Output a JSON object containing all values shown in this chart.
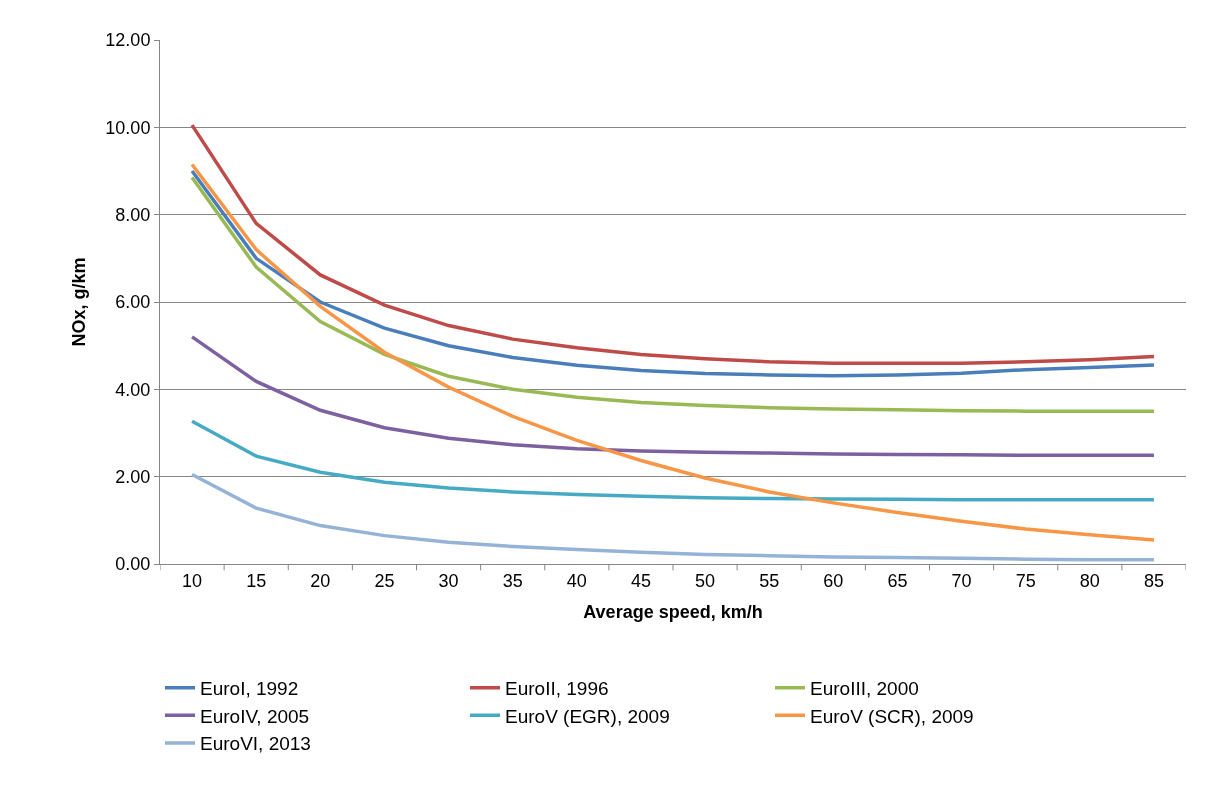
{
  "chart_data": {
    "type": "line",
    "xlabel": "Average speed, km/h",
    "ylabel": "NOx, g/km",
    "categories": [
      "10",
      "15",
      "20",
      "25",
      "30",
      "35",
      "40",
      "45",
      "50",
      "55",
      "60",
      "65",
      "70",
      "75",
      "80",
      "85"
    ],
    "series": [
      {
        "name": "EuroI, 1992",
        "color": "#4a7ebb",
        "values": [
          9.0,
          7.0,
          6.0,
          5.4,
          5.0,
          4.73,
          4.55,
          4.43,
          4.36,
          4.33,
          4.31,
          4.33,
          4.37,
          4.45,
          4.5,
          4.56
        ]
      },
      {
        "name": "EuroII, 1996",
        "color": "#be4b48",
        "values": [
          10.05,
          7.8,
          6.62,
          5.93,
          5.46,
          5.15,
          4.95,
          4.8,
          4.7,
          4.63,
          4.6,
          4.6,
          4.6,
          4.63,
          4.68,
          4.75
        ]
      },
      {
        "name": "EuroIII, 2000",
        "color": "#98b954",
        "values": [
          8.85,
          6.8,
          5.55,
          4.8,
          4.3,
          4.0,
          3.82,
          3.7,
          3.63,
          3.58,
          3.55,
          3.53,
          3.51,
          3.5,
          3.5,
          3.5
        ]
      },
      {
        "name": "EuroIV, 2005",
        "color": "#7d60a0",
        "values": [
          5.2,
          4.18,
          3.52,
          3.12,
          2.88,
          2.73,
          2.64,
          2.59,
          2.56,
          2.54,
          2.52,
          2.51,
          2.5,
          2.49,
          2.49,
          2.49
        ]
      },
      {
        "name": "EuroV (EGR), 2009",
        "color": "#46aac5",
        "values": [
          3.27,
          2.47,
          2.1,
          1.87,
          1.74,
          1.65,
          1.59,
          1.55,
          1.52,
          1.5,
          1.49,
          1.48,
          1.47,
          1.47,
          1.47,
          1.47
        ]
      },
      {
        "name": "EuroV (SCR), 2009",
        "color": "#f79646",
        "values": [
          9.15,
          7.2,
          5.9,
          4.85,
          4.05,
          3.38,
          2.83,
          2.37,
          1.97,
          1.65,
          1.4,
          1.18,
          0.98,
          0.8,
          0.67,
          0.55
        ]
      },
      {
        "name": "EuroVI, 2013",
        "color": "#95b3d7",
        "values": [
          2.05,
          1.28,
          0.88,
          0.65,
          0.5,
          0.4,
          0.33,
          0.27,
          0.22,
          0.19,
          0.16,
          0.15,
          0.13,
          0.11,
          0.1,
          0.1
        ]
      }
    ],
    "ylim": [
      0,
      12
    ],
    "yticks": [
      {
        "value": 0,
        "label": "0.00"
      },
      {
        "value": 2,
        "label": "2.00"
      },
      {
        "value": 4,
        "label": "4.00"
      },
      {
        "value": 6,
        "label": "6.00"
      },
      {
        "value": 8,
        "label": "8.00"
      },
      {
        "value": 10,
        "label": "10.00"
      },
      {
        "value": 12,
        "label": "12.00"
      }
    ],
    "grid": "y",
    "legend": "bottom",
    "marker": "none",
    "line_style": "solid"
  }
}
